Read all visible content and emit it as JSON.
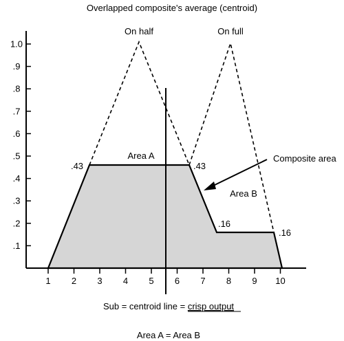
{
  "title": "Overlapped composite's average (centroid)",
  "x_ticks": [
    "1",
    "2",
    "3",
    "4",
    "5",
    "6",
    "7",
    "8",
    "9",
    "10"
  ],
  "y_ticks": [
    {
      "value": 0.1,
      "label": ".1"
    },
    {
      "value": 0.2,
      "label": ".2"
    },
    {
      "value": 0.3,
      "label": ".3"
    },
    {
      "value": 0.4,
      "label": ".4"
    },
    {
      "value": 0.5,
      "label": ".5"
    },
    {
      "value": 0.6,
      "label": ".6"
    },
    {
      "value": 0.7,
      "label": ".7"
    },
    {
      "value": 0.8,
      "label": ".8"
    },
    {
      "value": 0.9,
      "label": ".9"
    },
    {
      "value": 1.0,
      "label": "1.0"
    }
  ],
  "labels": {
    "on_half": "On half",
    "on_full": "On full",
    "area_a": "Area A",
    "area_b": "Area B",
    "composite_area": "Composite area",
    "left_level": ".43",
    "right_level": ".43",
    "low_level_left": ".16",
    "low_level_right": ".16"
  },
  "caption": {
    "prefix": "Sub = centroid line = ",
    "underlined": "crisp output"
  },
  "footer": "Area A = Area B"
}
